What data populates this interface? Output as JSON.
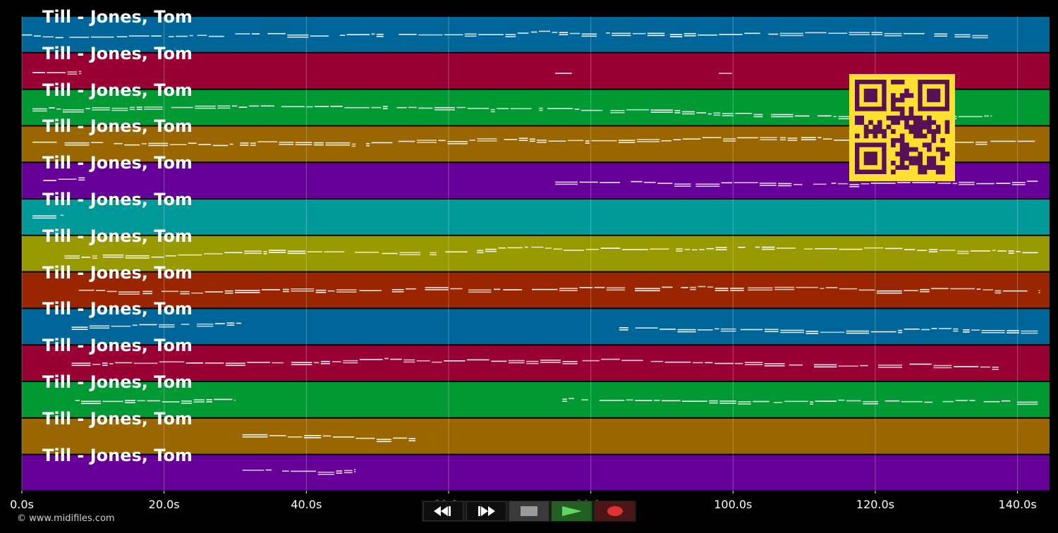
{
  "colors": {
    "background": "#000000",
    "tracks": [
      "#006699",
      "#990033",
      "#009933",
      "#996600",
      "#660099",
      "#009999",
      "#999900",
      "#992600",
      "#006699",
      "#990033",
      "#009933",
      "#996600",
      "#660099"
    ],
    "notes": "#ffffff",
    "qr_fg": "#ffe030",
    "qr_bg": "#5a1054",
    "play": "#5fd75f",
    "record": "#dd3333",
    "stop": "#9a9a9a"
  },
  "tracks": [
    {
      "title": "Till - Jones, Tom"
    },
    {
      "title": "Till - Jones, Tom"
    },
    {
      "title": "Till - Jones, Tom"
    },
    {
      "title": "Till - Jones, Tom"
    },
    {
      "title": "Till - Jones, Tom"
    },
    {
      "title": "Till - Jones, Tom"
    },
    {
      "title": "Till - Jones, Tom"
    },
    {
      "title": "Till - Jones, Tom"
    },
    {
      "title": "Till - Jones, Tom"
    },
    {
      "title": "Till - Jones, Tom"
    },
    {
      "title": "Till - Jones, Tom"
    },
    {
      "title": "Till - Jones, Tom"
    },
    {
      "title": "Till - Jones, Tom"
    }
  ],
  "timeline": {
    "ticks": [
      "0.0s",
      "20.0s",
      "40.0s",
      "60.0s",
      "80.0s",
      "100.0s",
      "120.0s",
      "140.0s"
    ],
    "tick_values": [
      0,
      20,
      40,
      60,
      80,
      100,
      120,
      140
    ],
    "max_seconds": 144.5
  },
  "track_note_ranges": [
    [
      [
        0,
        29
      ],
      [
        30,
        51
      ],
      [
        53,
        136
      ]
    ],
    [
      [
        1.5,
        8.5
      ],
      [
        75,
        77.5
      ],
      [
        98,
        100
      ]
    ],
    [
      [
        1.5,
        136.5
      ]
    ],
    [
      [
        1.5,
        143
      ]
    ],
    [
      [
        3,
        9
      ],
      [
        75,
        143
      ]
    ],
    [
      [
        1.5,
        6
      ]
    ],
    [
      [
        6,
        143
      ]
    ],
    [
      [
        8,
        143
      ]
    ],
    [
      [
        7,
        31
      ],
      [
        84,
        143
      ]
    ],
    [
      [
        7,
        137.5
      ]
    ],
    [
      [
        7.5,
        30
      ],
      [
        76,
        143
      ]
    ],
    [
      [
        31,
        55.5
      ]
    ],
    [
      [
        31,
        47
      ]
    ]
  ],
  "transport": {
    "rewind_icon": "rewind-icon",
    "forward_icon": "fast-forward-icon",
    "stop_icon": "stop-icon",
    "play_icon": "play-icon",
    "record_icon": "record-icon"
  },
  "copyright": "© www.midifiles.com",
  "qr_icon": "qr-code-icon"
}
